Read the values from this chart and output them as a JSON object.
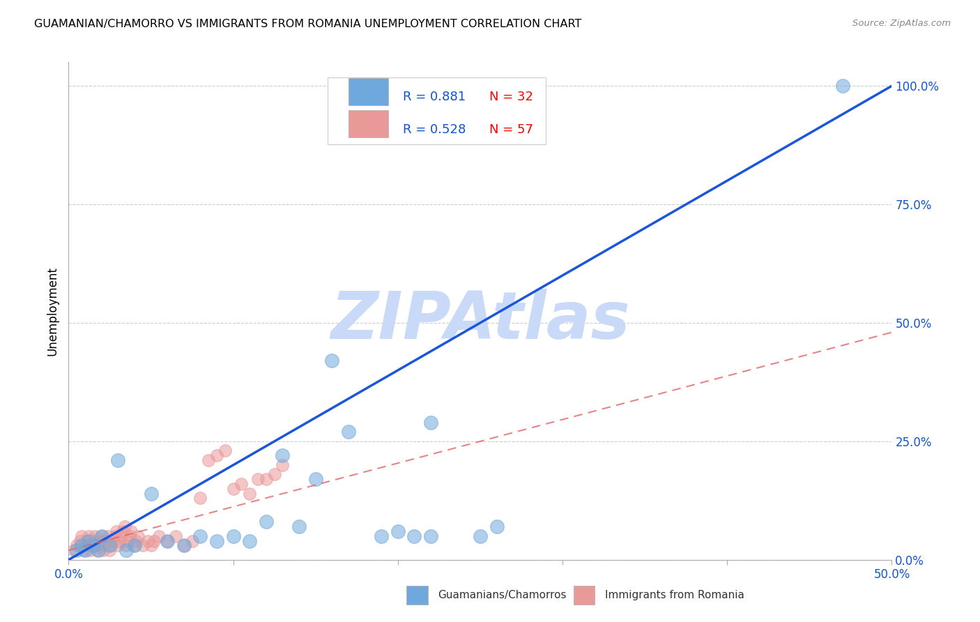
{
  "title": "GUAMANIAN/CHAMORRO VS IMMIGRANTS FROM ROMANIA UNEMPLOYMENT CORRELATION CHART",
  "source": "Source: ZipAtlas.com",
  "ylabel": "Unemployment",
  "xlim": [
    0.0,
    0.5
  ],
  "ylim": [
    0.0,
    1.05
  ],
  "xtick_positions": [
    0.0,
    0.1,
    0.2,
    0.3,
    0.4,
    0.5
  ],
  "xtick_labels_show": [
    "0.0%",
    "",
    "",
    "",
    "",
    "50.0%"
  ],
  "yticks_right": [
    0.0,
    0.25,
    0.5,
    0.75,
    1.0
  ],
  "yticklabels_right": [
    "0.0%",
    "25.0%",
    "50.0%",
    "75.0%",
    "100.0%"
  ],
  "blue_color": "#6fa8dc",
  "pink_color": "#ea9999",
  "blue_line_color": "#1a56db",
  "pink_line_color": "#e06666",
  "legend_r_blue": "0.881",
  "legend_n_blue": "32",
  "legend_r_pink": "0.528",
  "legend_n_pink": "57",
  "legend_label_blue": "Guamanians/Chamorros",
  "legend_label_pink": "Immigrants from Romania",
  "watermark": "ZIPAtlas",
  "watermark_color": "#c9daf8",
  "blue_scatter_x": [
    0.005,
    0.008,
    0.01,
    0.012,
    0.015,
    0.018,
    0.02,
    0.025,
    0.03,
    0.035,
    0.04,
    0.05,
    0.06,
    0.07,
    0.08,
    0.09,
    0.1,
    0.11,
    0.12,
    0.13,
    0.14,
    0.15,
    0.16,
    0.17,
    0.19,
    0.2,
    0.21,
    0.22,
    0.25,
    0.26,
    0.47,
    0.22
  ],
  "blue_scatter_y": [
    0.02,
    0.03,
    0.02,
    0.04,
    0.03,
    0.02,
    0.05,
    0.03,
    0.21,
    0.02,
    0.03,
    0.14,
    0.04,
    0.03,
    0.05,
    0.04,
    0.05,
    0.04,
    0.08,
    0.22,
    0.07,
    0.17,
    0.42,
    0.27,
    0.05,
    0.06,
    0.05,
    0.29,
    0.05,
    0.07,
    1.0,
    0.05
  ],
  "pink_scatter_x": [
    0.003,
    0.005,
    0.007,
    0.008,
    0.009,
    0.01,
    0.011,
    0.012,
    0.013,
    0.014,
    0.015,
    0.016,
    0.017,
    0.018,
    0.019,
    0.02,
    0.021,
    0.022,
    0.023,
    0.024,
    0.025,
    0.026,
    0.027,
    0.028,
    0.029,
    0.03,
    0.031,
    0.032,
    0.033,
    0.034,
    0.035,
    0.036,
    0.037,
    0.038,
    0.04,
    0.041,
    0.042,
    0.045,
    0.048,
    0.05,
    0.052,
    0.055,
    0.06,
    0.065,
    0.07,
    0.075,
    0.08,
    0.085,
    0.09,
    0.095,
    0.1,
    0.105,
    0.11,
    0.115,
    0.12,
    0.125,
    0.13
  ],
  "pink_scatter_y": [
    0.02,
    0.03,
    0.04,
    0.05,
    0.02,
    0.03,
    0.04,
    0.05,
    0.02,
    0.03,
    0.04,
    0.05,
    0.02,
    0.03,
    0.04,
    0.05,
    0.02,
    0.03,
    0.04,
    0.05,
    0.02,
    0.03,
    0.04,
    0.05,
    0.06,
    0.03,
    0.04,
    0.05,
    0.06,
    0.07,
    0.03,
    0.04,
    0.05,
    0.06,
    0.03,
    0.04,
    0.05,
    0.03,
    0.04,
    0.03,
    0.04,
    0.05,
    0.04,
    0.05,
    0.03,
    0.04,
    0.13,
    0.21,
    0.22,
    0.23,
    0.15,
    0.16,
    0.14,
    0.17,
    0.17,
    0.18,
    0.2
  ],
  "blue_line_x": [
    0.0,
    0.5
  ],
  "blue_line_y": [
    0.0,
    1.0
  ],
  "pink_line_x": [
    0.0,
    0.5
  ],
  "pink_line_y": [
    0.02,
    0.48
  ]
}
